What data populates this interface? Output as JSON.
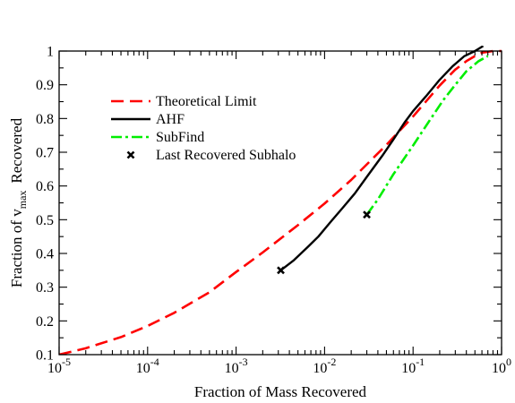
{
  "chart_data": {
    "type": "line",
    "xscale": "log",
    "xlim": [
      1e-05,
      1
    ],
    "ylim": [
      0.1,
      1
    ],
    "grid": false,
    "legend_position": "upper-left",
    "xlabel": "Fraction of Mass Recovered",
    "ylabel_prefix": "Fraction of v",
    "ylabel_subscript": "max",
    "ylabel_suffix": "Recovered",
    "x_ticks": [
      {
        "value": 1e-05,
        "base": "10",
        "exp": "-5"
      },
      {
        "value": 0.0001,
        "base": "10",
        "exp": "-4"
      },
      {
        "value": 0.001,
        "base": "10",
        "exp": "-3"
      },
      {
        "value": 0.01,
        "base": "10",
        "exp": "-2"
      },
      {
        "value": 0.1,
        "base": "10",
        "exp": "-1"
      },
      {
        "value": 1,
        "base": "10",
        "exp": "0"
      }
    ],
    "y_ticks": [
      {
        "value": 0.1,
        "label": "0.1"
      },
      {
        "value": 0.2,
        "label": "0.2"
      },
      {
        "value": 0.3,
        "label": "0.3"
      },
      {
        "value": 0.4,
        "label": "0.4"
      },
      {
        "value": 0.5,
        "label": "0.5"
      },
      {
        "value": 0.6,
        "label": "0.6"
      },
      {
        "value": 0.7,
        "label": "0.7"
      },
      {
        "value": 0.8,
        "label": "0.8"
      },
      {
        "value": 0.9,
        "label": "0.9"
      },
      {
        "value": 1,
        "label": "1"
      }
    ],
    "series": [
      {
        "name": "Theoretical Limit",
        "color": "#ff0000",
        "style": "dashed",
        "x": [
          1e-05,
          2e-05,
          5e-05,
          0.0001,
          0.0002,
          0.0005,
          0.001,
          0.002,
          0.005,
          0.01,
          0.02,
          0.05,
          0.1,
          0.2,
          0.3,
          0.4,
          0.5,
          0.6,
          0.8,
          1.0
        ],
        "y": [
          0.1,
          0.119,
          0.152,
          0.185,
          0.224,
          0.285,
          0.345,
          0.403,
          0.484,
          0.548,
          0.618,
          0.722,
          0.806,
          0.898,
          0.945,
          0.97,
          0.985,
          0.995,
          1.0,
          1.0
        ]
      },
      {
        "name": "AHF",
        "color": "#000000",
        "style": "solid",
        "x": [
          0.0032,
          0.0045,
          0.0065,
          0.0085,
          0.012,
          0.016,
          0.022,
          0.03,
          0.045,
          0.06,
          0.08,
          0.1,
          0.14,
          0.2,
          0.28,
          0.38,
          0.5,
          0.62
        ],
        "y": [
          0.35,
          0.38,
          0.42,
          0.45,
          0.497,
          0.535,
          0.578,
          0.627,
          0.69,
          0.738,
          0.788,
          0.822,
          0.866,
          0.915,
          0.955,
          0.985,
          1.0,
          1.015
        ]
      },
      {
        "name": "SubFind",
        "color": "#00ee00",
        "style": "dash-dot",
        "x": [
          0.03,
          0.04,
          0.06,
          0.1,
          0.15,
          0.22,
          0.3,
          0.4,
          0.55,
          0.7
        ],
        "y": [
          0.515,
          0.56,
          0.635,
          0.72,
          0.79,
          0.855,
          0.9,
          0.94,
          0.97,
          0.985
        ]
      }
    ],
    "markers": {
      "name": "Last Recovered Subhalo",
      "symbol": "x",
      "color": "#000000",
      "points": [
        {
          "x": 0.0032,
          "y": 0.35
        },
        {
          "x": 0.03,
          "y": 0.515
        }
      ]
    }
  }
}
